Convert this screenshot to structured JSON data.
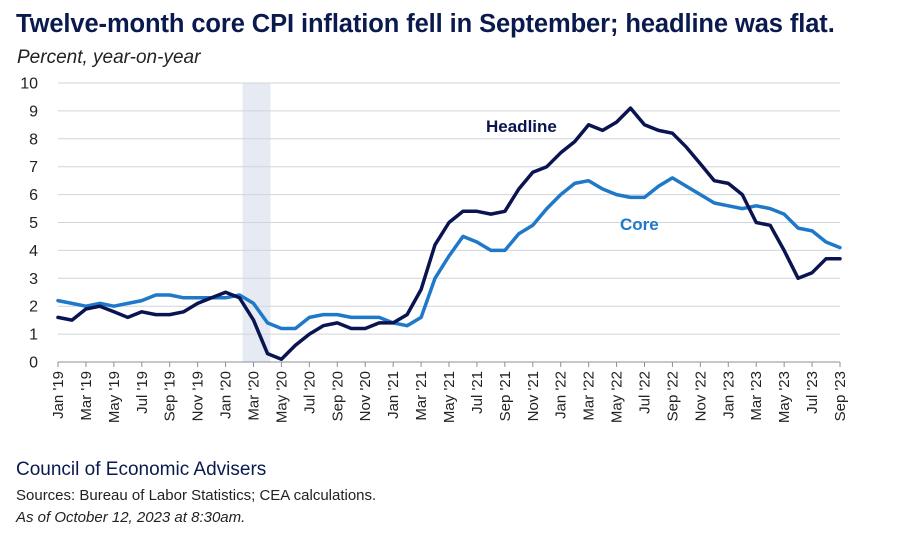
{
  "header": {
    "title": "Twelve-month core CPI inflation fell in September; headline was flat.",
    "subtitle": "Percent, year-on-year"
  },
  "footer": {
    "organization": "Council of Economic Advisers",
    "sources": "Sources: Bureau of Labor Statistics; CEA calculations.",
    "as_of": "As of October 12, 2023 at 8:30am."
  },
  "colors": {
    "headline": "#0a1450",
    "core": "#1f78c8",
    "shade": "#e6eaf3",
    "grid": "#d0d4dc"
  },
  "chart_data": {
    "type": "line",
    "title": "Twelve-month core CPI inflation fell in September; headline was flat.",
    "ylabel": "Percent, year-on-year",
    "ylim": [
      0,
      10
    ],
    "yticks": [
      "0",
      "1",
      "2",
      "3",
      "4",
      "5",
      "6",
      "7",
      "8",
      "9",
      "10"
    ],
    "grid": true,
    "x": [
      "Jan '19",
      "Feb '19",
      "Mar '19",
      "Apr '19",
      "May '19",
      "Jun '19",
      "Jul '19",
      "Aug '19",
      "Sep '19",
      "Oct '19",
      "Nov '19",
      "Dec '19",
      "Jan '20",
      "Feb '20",
      "Mar '20",
      "Apr '20",
      "May '20",
      "Jun '20",
      "Jul '20",
      "Aug '20",
      "Sep '20",
      "Oct '20",
      "Nov '20",
      "Dec '20",
      "Jan '21",
      "Feb '21",
      "Mar '21",
      "Apr '21",
      "May '21",
      "Jun '21",
      "Jul '21",
      "Aug '21",
      "Sep '21",
      "Oct '21",
      "Nov '21",
      "Dec '21",
      "Jan '22",
      "Feb '22",
      "Mar '22",
      "Apr '22",
      "May '22",
      "Jun '22",
      "Jul '22",
      "Aug '22",
      "Sep '22",
      "Oct '22",
      "Nov '22",
      "Dec '22",
      "Jan '23",
      "Feb '23",
      "Mar '23",
      "Apr '23",
      "May '23",
      "Jun '23",
      "Jul '23",
      "Aug '23",
      "Sep '23"
    ],
    "xticks": [
      "Jan '19",
      "Mar '19",
      "May '19",
      "Jul '19",
      "Sep '19",
      "Nov '19",
      "Jan '20",
      "Mar '20",
      "May '20",
      "Jul '20",
      "Sep '20",
      "Nov '20",
      "Jan '21",
      "Mar '21",
      "May '21",
      "Jul '21",
      "Sep '21",
      "Nov '21",
      "Jan '22",
      "Mar '22",
      "May '22",
      "Jul '22",
      "Sep '22",
      "Nov '22",
      "Jan '23",
      "Mar '23",
      "May '23",
      "Jul '23",
      "Sep '23"
    ],
    "shaded_region": {
      "start": "Feb '20",
      "end": "Apr '20"
    },
    "series": [
      {
        "name": "Headline",
        "values": [
          1.6,
          1.5,
          1.9,
          2.0,
          1.8,
          1.6,
          1.8,
          1.7,
          1.7,
          1.8,
          2.1,
          2.3,
          2.5,
          2.3,
          1.5,
          0.3,
          0.1,
          0.6,
          1.0,
          1.3,
          1.4,
          1.2,
          1.2,
          1.4,
          1.4,
          1.7,
          2.6,
          4.2,
          5.0,
          5.4,
          5.4,
          5.3,
          5.4,
          6.2,
          6.8,
          7.0,
          7.5,
          7.9,
          8.5,
          8.3,
          8.6,
          9.1,
          8.5,
          8.3,
          8.2,
          7.7,
          7.1,
          6.5,
          6.4,
          6.0,
          5.0,
          4.9,
          4.0,
          3.0,
          3.2,
          3.7,
          3.7
        ]
      },
      {
        "name": "Core",
        "values": [
          2.2,
          2.1,
          2.0,
          2.1,
          2.0,
          2.1,
          2.2,
          2.4,
          2.4,
          2.3,
          2.3,
          2.3,
          2.3,
          2.4,
          2.1,
          1.4,
          1.2,
          1.2,
          1.6,
          1.7,
          1.7,
          1.6,
          1.6,
          1.6,
          1.4,
          1.3,
          1.6,
          3.0,
          3.8,
          4.5,
          4.3,
          4.0,
          4.0,
          4.6,
          4.9,
          5.5,
          6.0,
          6.4,
          6.5,
          6.2,
          6.0,
          5.9,
          5.9,
          6.3,
          6.6,
          6.3,
          6.0,
          5.7,
          5.6,
          5.5,
          5.6,
          5.5,
          5.3,
          4.8,
          4.7,
          4.3,
          4.1
        ]
      }
    ]
  }
}
